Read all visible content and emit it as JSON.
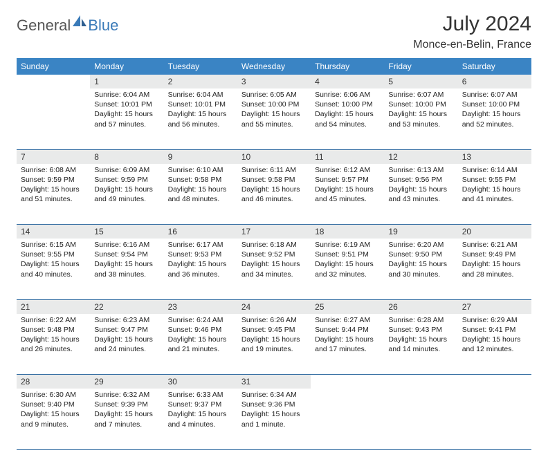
{
  "brand": {
    "part1": "General",
    "part2": "Blue"
  },
  "title": {
    "month": "July 2024",
    "location": "Monce-en-Belin, France"
  },
  "colors": {
    "header_bg": "#3a84c4",
    "header_text": "#ffffff",
    "daynum_bg": "#e9eaea",
    "border": "#2f6aa0",
    "brand_gray": "#555555",
    "brand_blue": "#3a7ab8",
    "body_text": "#222222"
  },
  "layout": {
    "cell_fontsize": 10.5,
    "header_fontsize": 12,
    "month_fontsize": 30,
    "location_fontsize": 16
  },
  "weekdays": [
    "Sunday",
    "Monday",
    "Tuesday",
    "Wednesday",
    "Thursday",
    "Friday",
    "Saturday"
  ],
  "weeks": [
    [
      null,
      {
        "n": "1",
        "sr": "Sunrise: 6:04 AM",
        "ss": "Sunset: 10:01 PM",
        "dl": "Daylight: 15 hours and 57 minutes."
      },
      {
        "n": "2",
        "sr": "Sunrise: 6:04 AM",
        "ss": "Sunset: 10:01 PM",
        "dl": "Daylight: 15 hours and 56 minutes."
      },
      {
        "n": "3",
        "sr": "Sunrise: 6:05 AM",
        "ss": "Sunset: 10:00 PM",
        "dl": "Daylight: 15 hours and 55 minutes."
      },
      {
        "n": "4",
        "sr": "Sunrise: 6:06 AM",
        "ss": "Sunset: 10:00 PM",
        "dl": "Daylight: 15 hours and 54 minutes."
      },
      {
        "n": "5",
        "sr": "Sunrise: 6:07 AM",
        "ss": "Sunset: 10:00 PM",
        "dl": "Daylight: 15 hours and 53 minutes."
      },
      {
        "n": "6",
        "sr": "Sunrise: 6:07 AM",
        "ss": "Sunset: 10:00 PM",
        "dl": "Daylight: 15 hours and 52 minutes."
      }
    ],
    [
      {
        "n": "7",
        "sr": "Sunrise: 6:08 AM",
        "ss": "Sunset: 9:59 PM",
        "dl": "Daylight: 15 hours and 51 minutes."
      },
      {
        "n": "8",
        "sr": "Sunrise: 6:09 AM",
        "ss": "Sunset: 9:59 PM",
        "dl": "Daylight: 15 hours and 49 minutes."
      },
      {
        "n": "9",
        "sr": "Sunrise: 6:10 AM",
        "ss": "Sunset: 9:58 PM",
        "dl": "Daylight: 15 hours and 48 minutes."
      },
      {
        "n": "10",
        "sr": "Sunrise: 6:11 AM",
        "ss": "Sunset: 9:58 PM",
        "dl": "Daylight: 15 hours and 46 minutes."
      },
      {
        "n": "11",
        "sr": "Sunrise: 6:12 AM",
        "ss": "Sunset: 9:57 PM",
        "dl": "Daylight: 15 hours and 45 minutes."
      },
      {
        "n": "12",
        "sr": "Sunrise: 6:13 AM",
        "ss": "Sunset: 9:56 PM",
        "dl": "Daylight: 15 hours and 43 minutes."
      },
      {
        "n": "13",
        "sr": "Sunrise: 6:14 AM",
        "ss": "Sunset: 9:55 PM",
        "dl": "Daylight: 15 hours and 41 minutes."
      }
    ],
    [
      {
        "n": "14",
        "sr": "Sunrise: 6:15 AM",
        "ss": "Sunset: 9:55 PM",
        "dl": "Daylight: 15 hours and 40 minutes."
      },
      {
        "n": "15",
        "sr": "Sunrise: 6:16 AM",
        "ss": "Sunset: 9:54 PM",
        "dl": "Daylight: 15 hours and 38 minutes."
      },
      {
        "n": "16",
        "sr": "Sunrise: 6:17 AM",
        "ss": "Sunset: 9:53 PM",
        "dl": "Daylight: 15 hours and 36 minutes."
      },
      {
        "n": "17",
        "sr": "Sunrise: 6:18 AM",
        "ss": "Sunset: 9:52 PM",
        "dl": "Daylight: 15 hours and 34 minutes."
      },
      {
        "n": "18",
        "sr": "Sunrise: 6:19 AM",
        "ss": "Sunset: 9:51 PM",
        "dl": "Daylight: 15 hours and 32 minutes."
      },
      {
        "n": "19",
        "sr": "Sunrise: 6:20 AM",
        "ss": "Sunset: 9:50 PM",
        "dl": "Daylight: 15 hours and 30 minutes."
      },
      {
        "n": "20",
        "sr": "Sunrise: 6:21 AM",
        "ss": "Sunset: 9:49 PM",
        "dl": "Daylight: 15 hours and 28 minutes."
      }
    ],
    [
      {
        "n": "21",
        "sr": "Sunrise: 6:22 AM",
        "ss": "Sunset: 9:48 PM",
        "dl": "Daylight: 15 hours and 26 minutes."
      },
      {
        "n": "22",
        "sr": "Sunrise: 6:23 AM",
        "ss": "Sunset: 9:47 PM",
        "dl": "Daylight: 15 hours and 24 minutes."
      },
      {
        "n": "23",
        "sr": "Sunrise: 6:24 AM",
        "ss": "Sunset: 9:46 PM",
        "dl": "Daylight: 15 hours and 21 minutes."
      },
      {
        "n": "24",
        "sr": "Sunrise: 6:26 AM",
        "ss": "Sunset: 9:45 PM",
        "dl": "Daylight: 15 hours and 19 minutes."
      },
      {
        "n": "25",
        "sr": "Sunrise: 6:27 AM",
        "ss": "Sunset: 9:44 PM",
        "dl": "Daylight: 15 hours and 17 minutes."
      },
      {
        "n": "26",
        "sr": "Sunrise: 6:28 AM",
        "ss": "Sunset: 9:43 PM",
        "dl": "Daylight: 15 hours and 14 minutes."
      },
      {
        "n": "27",
        "sr": "Sunrise: 6:29 AM",
        "ss": "Sunset: 9:41 PM",
        "dl": "Daylight: 15 hours and 12 minutes."
      }
    ],
    [
      {
        "n": "28",
        "sr": "Sunrise: 6:30 AM",
        "ss": "Sunset: 9:40 PM",
        "dl": "Daylight: 15 hours and 9 minutes."
      },
      {
        "n": "29",
        "sr": "Sunrise: 6:32 AM",
        "ss": "Sunset: 9:39 PM",
        "dl": "Daylight: 15 hours and 7 minutes."
      },
      {
        "n": "30",
        "sr": "Sunrise: 6:33 AM",
        "ss": "Sunset: 9:37 PM",
        "dl": "Daylight: 15 hours and 4 minutes."
      },
      {
        "n": "31",
        "sr": "Sunrise: 6:34 AM",
        "ss": "Sunset: 9:36 PM",
        "dl": "Daylight: 15 hours and 1 minute."
      },
      null,
      null,
      null
    ]
  ]
}
